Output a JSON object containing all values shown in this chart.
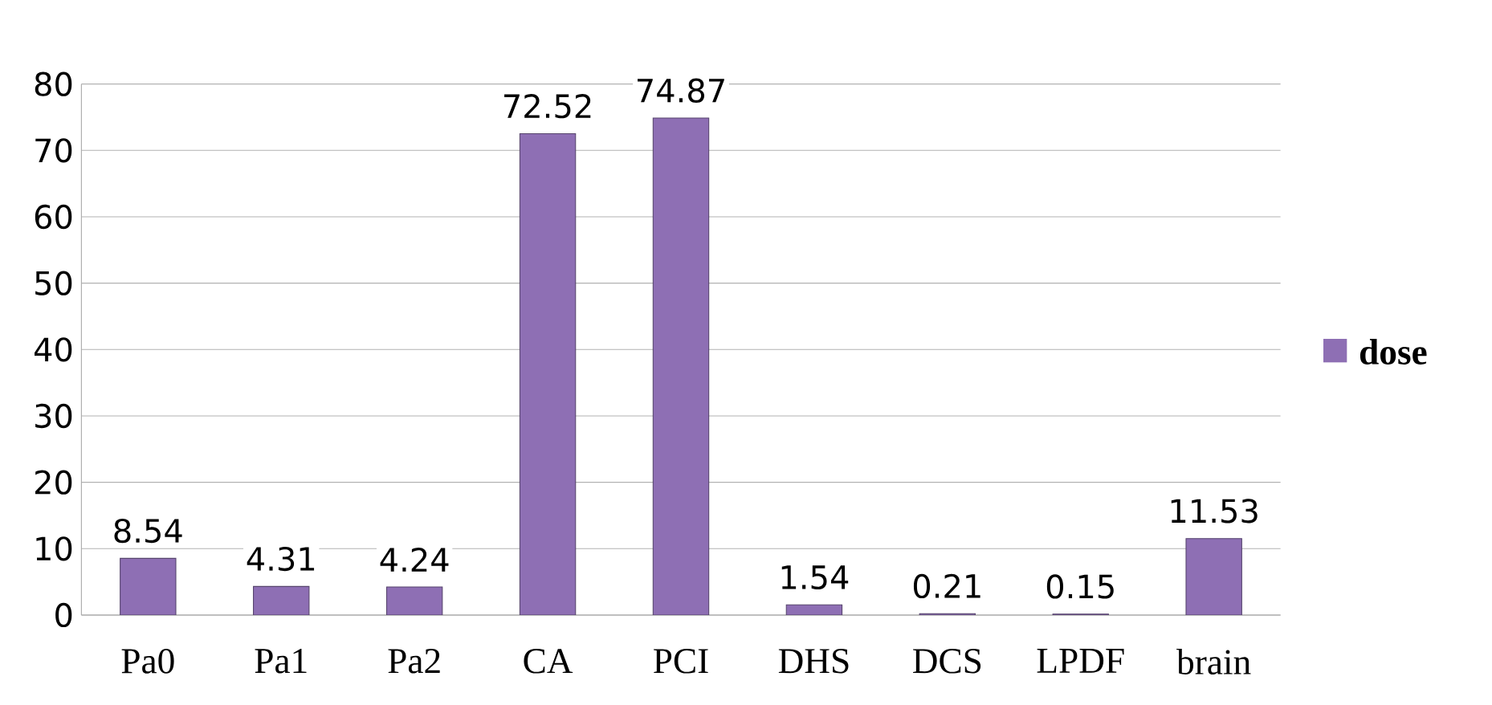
{
  "chart_data": {
    "type": "bar",
    "categories": [
      "Pa0",
      "Pa1",
      "Pa2",
      "CA",
      "PCI",
      "DHS",
      "DCS",
      "LPDF",
      "brain"
    ],
    "series": [
      {
        "name": "dose",
        "color": "#8e6fb4",
        "values": [
          8.54,
          4.31,
          4.24,
          72.52,
          74.87,
          1.54,
          0.21,
          0.15,
          11.53
        ]
      }
    ],
    "ylim": [
      0,
      80
    ],
    "yticks": [
      0,
      10,
      20,
      30,
      40,
      50,
      60,
      70,
      80
    ],
    "grid": "y",
    "legend": "right",
    "data_labels": true
  }
}
